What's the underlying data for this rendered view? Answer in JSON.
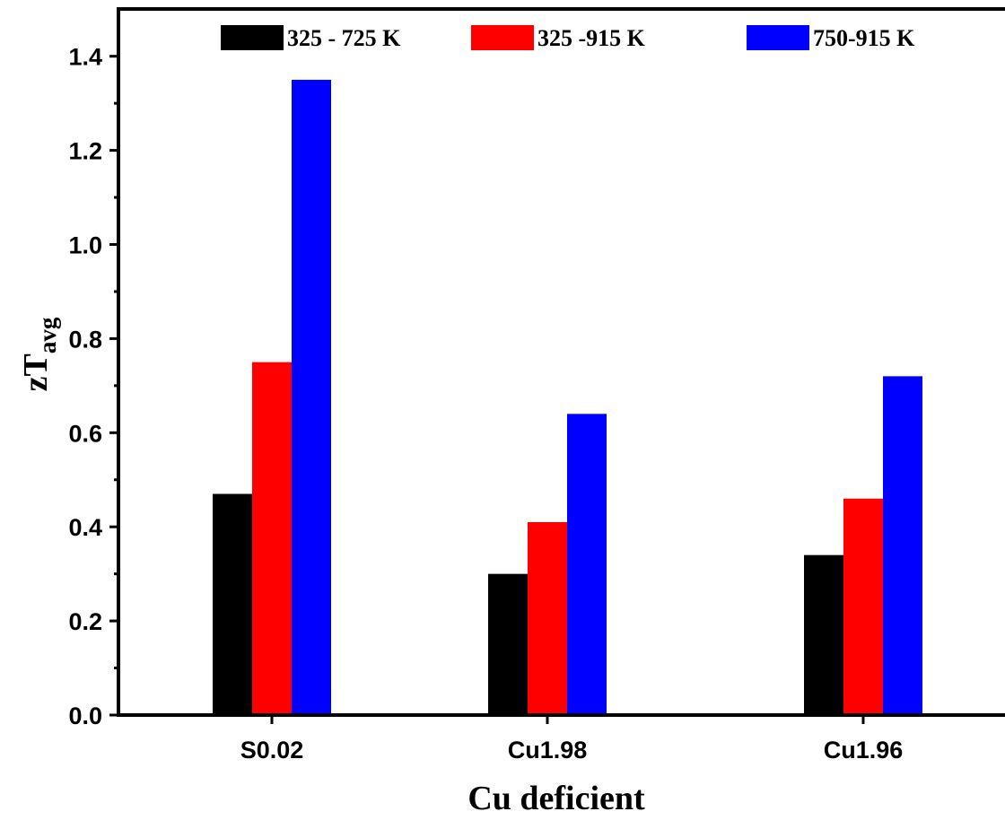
{
  "chart_data": {
    "type": "bar",
    "xlabel": "Cu deficient",
    "ylabel": {
      "main": "zT",
      "sub": "avg"
    },
    "categories": [
      "S0.02",
      "Cu1.98",
      "Cu1.96"
    ],
    "series": [
      {
        "name": "325 - 725 K",
        "color": "#000000",
        "values": [
          0.47,
          0.3,
          0.34
        ]
      },
      {
        "name": "325 -915 K",
        "color": "#ff0000",
        "values": [
          0.75,
          0.41,
          0.46
        ]
      },
      {
        "name": "750-915 K",
        "color": "#0000ff",
        "values": [
          1.35,
          0.64,
          0.72
        ]
      }
    ],
    "ylim": [
      0,
      1.5
    ],
    "yticks": [
      "0.0",
      "0.2",
      "0.4",
      "0.6",
      "0.8",
      "1.0",
      "1.2",
      "1.4"
    ],
    "grid": false,
    "legend_position": "top"
  }
}
